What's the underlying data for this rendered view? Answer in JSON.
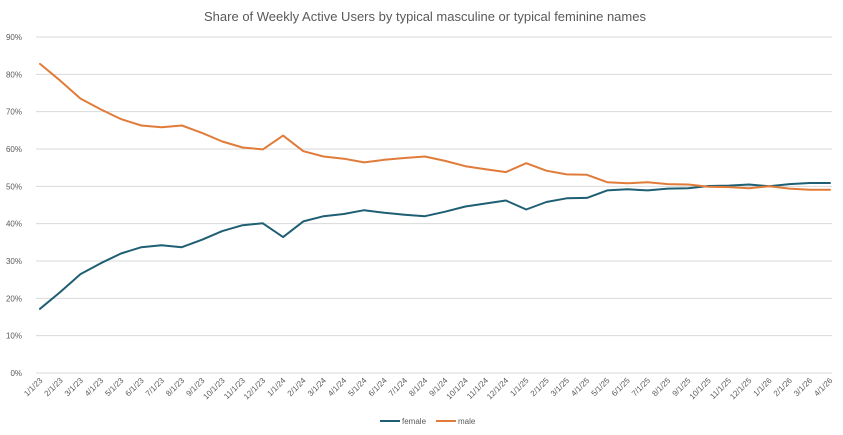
{
  "chart_data": {
    "type": "line",
    "title": "Share of Weekly Active Users by typical masculine or typical feminine names",
    "xlabel": "",
    "ylabel": "",
    "ylim": [
      0,
      0.9
    ],
    "y_ticks": [
      "0%",
      "10%",
      "20%",
      "30%",
      "40%",
      "50%",
      "60%",
      "70%",
      "80%",
      "90%"
    ],
    "grid": true,
    "legend_position": "bottom",
    "x": [
      "1/1/23",
      "2/1/23",
      "3/1/23",
      "4/1/23",
      "5/1/23",
      "6/1/23",
      "7/1/23",
      "8/1/23",
      "9/1/23",
      "10/1/23",
      "11/1/23",
      "12/1/23",
      "1/1/24",
      "2/1/24",
      "3/1/24",
      "4/1/24",
      "5/1/24",
      "6/1/24",
      "7/1/24",
      "8/1/24",
      "9/1/24",
      "10/1/24",
      "11/1/24",
      "12/1/24",
      "1/1/25",
      "2/1/25",
      "3/1/25",
      "4/1/25",
      "5/1/25",
      "6/1/25",
      "7/1/25",
      "8/1/25",
      "9/1/25",
      "10/1/25",
      "11/1/25",
      "12/1/25",
      "1/1/26",
      "2/1/26",
      "3/1/26",
      "4/1/26"
    ],
    "series": [
      {
        "name": "female",
        "color": "#1f5f73",
        "values": [
          0.172,
          0.217,
          0.265,
          0.294,
          0.32,
          0.337,
          0.342,
          0.337,
          0.357,
          0.38,
          0.396,
          0.401,
          0.364,
          0.406,
          0.42,
          0.426,
          0.436,
          0.429,
          0.424,
          0.42,
          0.432,
          0.446,
          0.454,
          0.462,
          0.438,
          0.458,
          0.468,
          0.469,
          0.489,
          0.492,
          0.489,
          0.494,
          0.495,
          0.501,
          0.502,
          0.505,
          0.5,
          0.506,
          0.509,
          0.509
        ]
      },
      {
        "name": "male",
        "color": "#e07b39",
        "values": [
          0.828,
          0.783,
          0.735,
          0.706,
          0.68,
          0.663,
          0.658,
          0.663,
          0.643,
          0.62,
          0.604,
          0.599,
          0.636,
          0.594,
          0.58,
          0.574,
          0.564,
          0.571,
          0.576,
          0.58,
          0.568,
          0.554,
          0.546,
          0.538,
          0.562,
          0.542,
          0.532,
          0.531,
          0.511,
          0.508,
          0.511,
          0.506,
          0.505,
          0.499,
          0.498,
          0.495,
          0.5,
          0.494,
          0.491,
          0.491
        ]
      }
    ]
  }
}
